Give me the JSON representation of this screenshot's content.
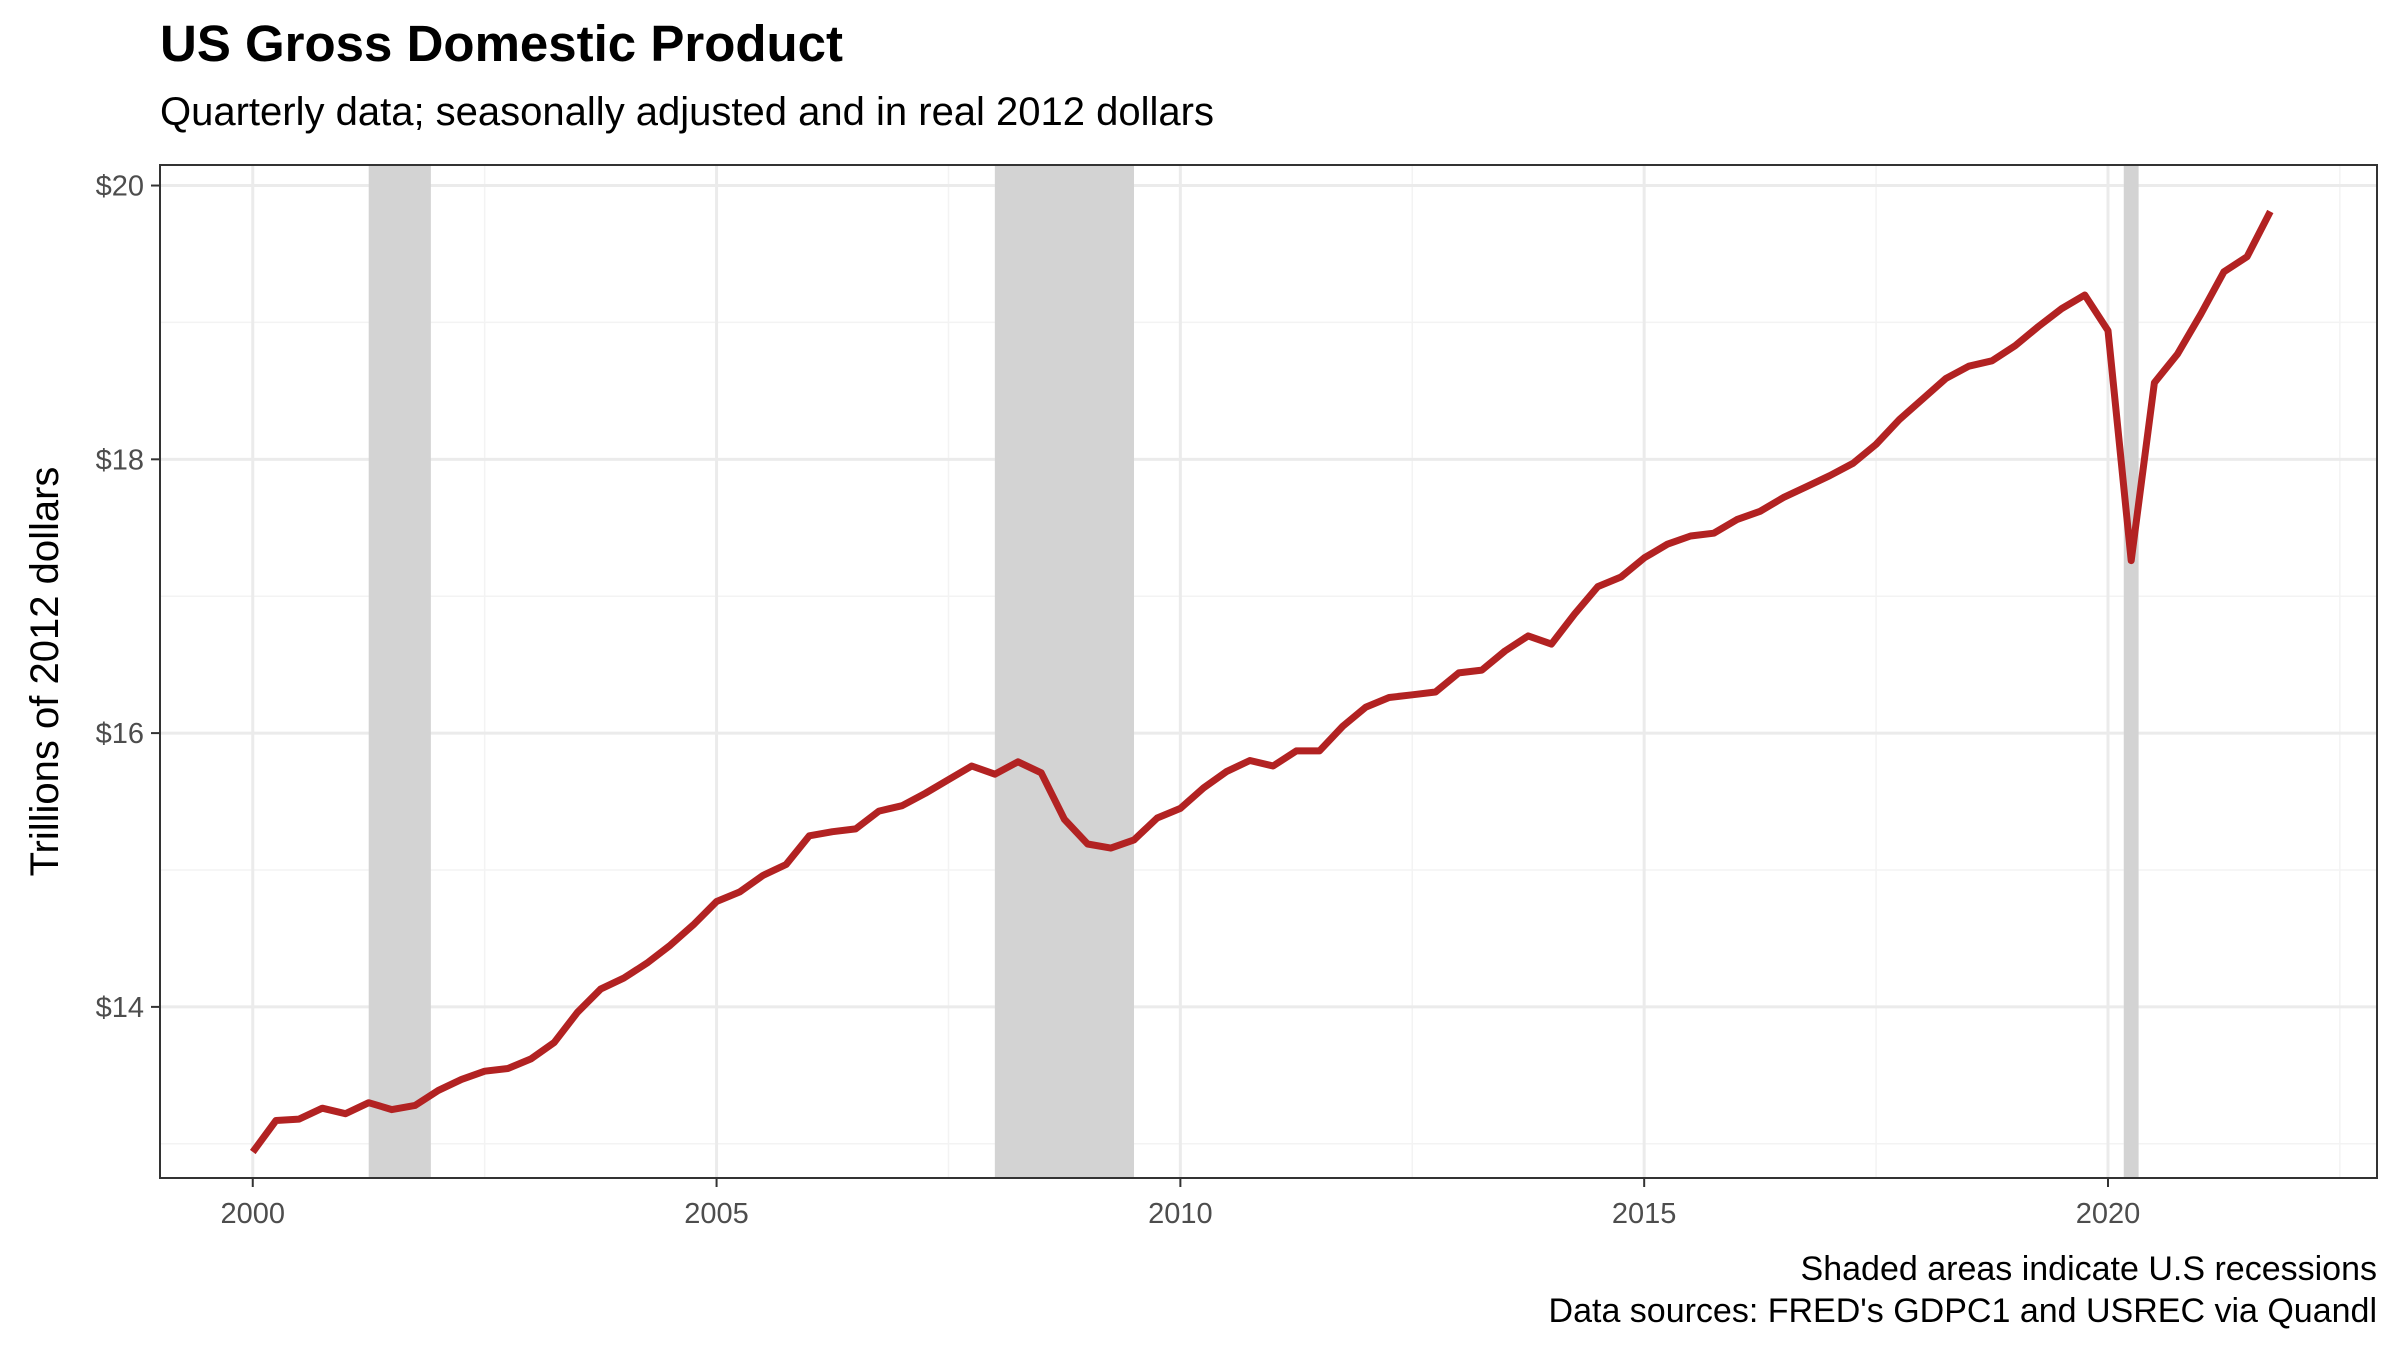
{
  "colors": {
    "line": "#b22222",
    "recession_shade": "#d3d3d3",
    "grid_major": "#ebebeb",
    "grid_minor": "#f3f3f3",
    "panel_border": "#333333",
    "tick_text": "#4d4d4d"
  },
  "chart_data": {
    "type": "line",
    "title": "US Gross Domestic Product",
    "subtitle": "Quarterly data; seasonally adjusted and in real 2012 dollars",
    "xlabel": "",
    "ylabel": "Trillions of 2012 dollars",
    "caption": [
      "Shaded areas indicate U.S recessions",
      "Data sources: FRED's GDPC1 and USREC via Quandl"
    ],
    "xlim": [
      1999.0,
      2022.9
    ],
    "ylim": [
      12.75,
      20.15
    ],
    "grid": true,
    "legend": "none",
    "x_ticks": [
      2000,
      2005,
      2010,
      2015,
      2020
    ],
    "y_ticks": [
      14,
      16,
      18,
      20
    ],
    "y_tick_labels": [
      "$14",
      "$16",
      "$18",
      "$20"
    ],
    "recessions": [
      {
        "start": 2001.25,
        "end": 2001.92
      },
      {
        "start": 2008.0,
        "end": 2009.5
      },
      {
        "start": 2020.17,
        "end": 2020.33
      }
    ],
    "series": [
      {
        "x": [
          2000.0,
          2000.25,
          2000.5,
          2000.75,
          2001.0,
          2001.25,
          2001.5,
          2001.75,
          2002.0,
          2002.25,
          2002.5,
          2002.75,
          2003.0,
          2003.25,
          2003.5,
          2003.75,
          2004.0,
          2004.25,
          2004.5,
          2004.75,
          2005.0,
          2005.25,
          2005.5,
          2005.75,
          2006.0,
          2006.25,
          2006.5,
          2006.75,
          2007.0,
          2007.25,
          2007.5,
          2007.75,
          2008.0,
          2008.25,
          2008.5,
          2008.75,
          2009.0,
          2009.25,
          2009.5,
          2009.75,
          2010.0,
          2010.25,
          2010.5,
          2010.75,
          2011.0,
          2011.25,
          2011.5,
          2011.75,
          2012.0,
          2012.25,
          2012.5,
          2012.75,
          2013.0,
          2013.25,
          2013.5,
          2013.75,
          2014.0,
          2014.25,
          2014.5,
          2014.75,
          2015.0,
          2015.25,
          2015.5,
          2015.75,
          2016.0,
          2016.25,
          2016.5,
          2016.75,
          2017.0,
          2017.25,
          2017.5,
          2017.75,
          2018.0,
          2018.25,
          2018.5,
          2018.75,
          2019.0,
          2019.25,
          2019.5,
          2019.75,
          2020.0,
          2020.25,
          2020.5,
          2020.75,
          2021.0,
          2021.25,
          2021.5,
          2021.75
        ],
        "values": [
          12.94,
          13.17,
          13.18,
          13.26,
          13.22,
          13.3,
          13.25,
          13.28,
          13.39,
          13.47,
          13.53,
          13.55,
          13.62,
          13.74,
          13.96,
          14.13,
          14.21,
          14.32,
          14.45,
          14.6,
          14.77,
          14.84,
          14.96,
          15.04,
          15.25,
          15.28,
          15.3,
          15.43,
          15.47,
          15.56,
          15.66,
          15.76,
          15.7,
          15.79,
          15.71,
          15.37,
          15.19,
          15.16,
          15.22,
          15.38,
          15.45,
          15.6,
          15.72,
          15.8,
          15.76,
          15.87,
          15.87,
          16.05,
          16.19,
          16.26,
          16.28,
          16.3,
          16.44,
          16.46,
          16.6,
          16.71,
          16.65,
          16.87,
          17.07,
          17.14,
          17.28,
          17.38,
          17.44,
          17.46,
          17.56,
          17.62,
          17.72,
          17.8,
          17.88,
          17.97,
          18.11,
          18.29,
          18.44,
          18.59,
          18.68,
          18.72,
          18.83,
          18.97,
          19.1,
          19.2,
          18.94,
          17.26,
          18.56,
          18.77,
          19.06,
          19.37,
          19.48,
          19.81
        ]
      }
    ]
  }
}
